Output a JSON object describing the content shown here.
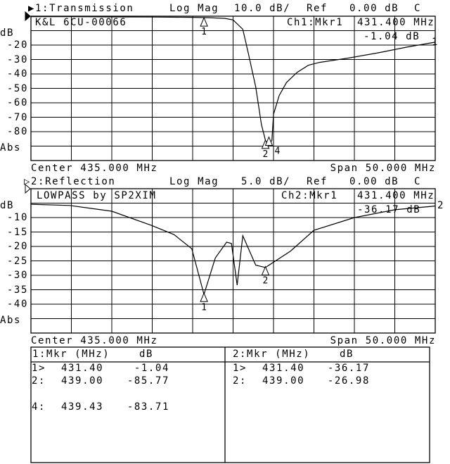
{
  "colors": {
    "background": "#ffffff",
    "ink": "#000000"
  },
  "chart_data": [
    {
      "type": "line",
      "channel_label": "▶1:Transmission",
      "format": "Log Mag",
      "scale": "10.0 dB/",
      "ref_label": "Ref",
      "ref_value": "0.00 dB",
      "coupling": "C",
      "title": "K&L 6CU-00066",
      "marker_label": "Ch1:Mkr1",
      "marker_freq": "431.400 MHz",
      "marker_value": "-1.04 dB",
      "ylabel": "dB",
      "ytick_labels": [
        "-20",
        "-30",
        "-40",
        "-50",
        "-60",
        "-70",
        "-80"
      ],
      "yticks": [
        -20,
        -30,
        -40,
        -50,
        -60,
        -70,
        -80
      ],
      "abs_label": "Abs",
      "center": "Center 435.000 MHz",
      "span": "Span 50.000 MHz",
      "xlim": [
        410,
        460
      ],
      "ylim": [
        -100,
        0
      ],
      "grid": true,
      "trace_end_label": "1",
      "markers": [
        {
          "label": "1",
          "freq": 431.4,
          "db": -1.04
        },
        {
          "label": "2",
          "freq": 439.0,
          "db": -85.77
        },
        {
          "label": "4",
          "freq": 439.43,
          "db": -83.71
        }
      ],
      "x": [
        410,
        415,
        420,
        425,
        430,
        432,
        434,
        435,
        436.2,
        436.9,
        437.8,
        438.5,
        439,
        439.3,
        439.8,
        440,
        440.7,
        441.6,
        442.9,
        444.3,
        445.7,
        449.3,
        452.9,
        456.5,
        460
      ],
      "y": [
        -0.3,
        -0.3,
        -0.5,
        -0.6,
        -0.8,
        -1,
        -1.5,
        -2.6,
        -9,
        -26,
        -49,
        -75,
        -86,
        -90,
        -86,
        -68,
        -55,
        -46,
        -39,
        -34,
        -32,
        -29,
        -25.4,
        -21.4,
        -18
      ]
    },
    {
      "type": "line",
      "channel_label": "▷2:Reflection",
      "format": "Log Mag",
      "scale": "5.0 dB/",
      "ref_label": "Ref",
      "ref_value": "0.00 dB",
      "coupling": "C",
      "title": "LOWPASS by SP2XIM",
      "marker_label": "Ch2:Mkr1",
      "marker_freq": "431.400 MHz",
      "marker_value": "-36.17 dB",
      "ylabel": "dB",
      "ytick_labels": [
        "-10",
        "-15",
        "-20",
        "-25",
        "-30",
        "-35",
        "-40"
      ],
      "yticks": [
        -10,
        -15,
        -20,
        -25,
        -30,
        -35,
        -40
      ],
      "abs_label": "Abs",
      "center": "Center 435.000 MHz",
      "span": "Span 50.000 MHz",
      "xlim": [
        410,
        460
      ],
      "ylim": [
        -50,
        0
      ],
      "grid": true,
      "trace_end_label": "2",
      "markers": [
        {
          "label": "1",
          "freq": 431.4,
          "db": -36.17
        },
        {
          "label": "2",
          "freq": 439.0,
          "db": -26.98
        }
      ],
      "x": [
        410,
        414.8,
        420,
        424.9,
        427.7,
        429.9,
        431.4,
        432.8,
        434.2,
        434.8,
        435.5,
        436.2,
        437.8,
        439,
        442.1,
        445,
        450,
        455,
        460
      ],
      "y": [
        -5.4,
        -5.8,
        -7.8,
        -12.7,
        -15.9,
        -20.8,
        -36.6,
        -24,
        -18.5,
        -19,
        -33.4,
        -16.3,
        -26.5,
        -27.3,
        -21.6,
        -14.4,
        -10,
        -7.3,
        -6
      ]
    }
  ],
  "marker_table": {
    "left": {
      "header": [
        "1:Mkr (MHz)",
        "dB"
      ],
      "rows": [
        [
          "1>",
          "431.40",
          "-1.04"
        ],
        [
          "2:",
          "439.00",
          "-85.77"
        ],
        [
          "4:",
          "439.43",
          "-83.71"
        ]
      ]
    },
    "right": {
      "header": [
        "2:Mkr (MHz)",
        "dB"
      ],
      "rows": [
        [
          "1>",
          "431.40",
          "-36.17"
        ],
        [
          "2:",
          "439.00",
          "-26.98"
        ]
      ]
    }
  }
}
